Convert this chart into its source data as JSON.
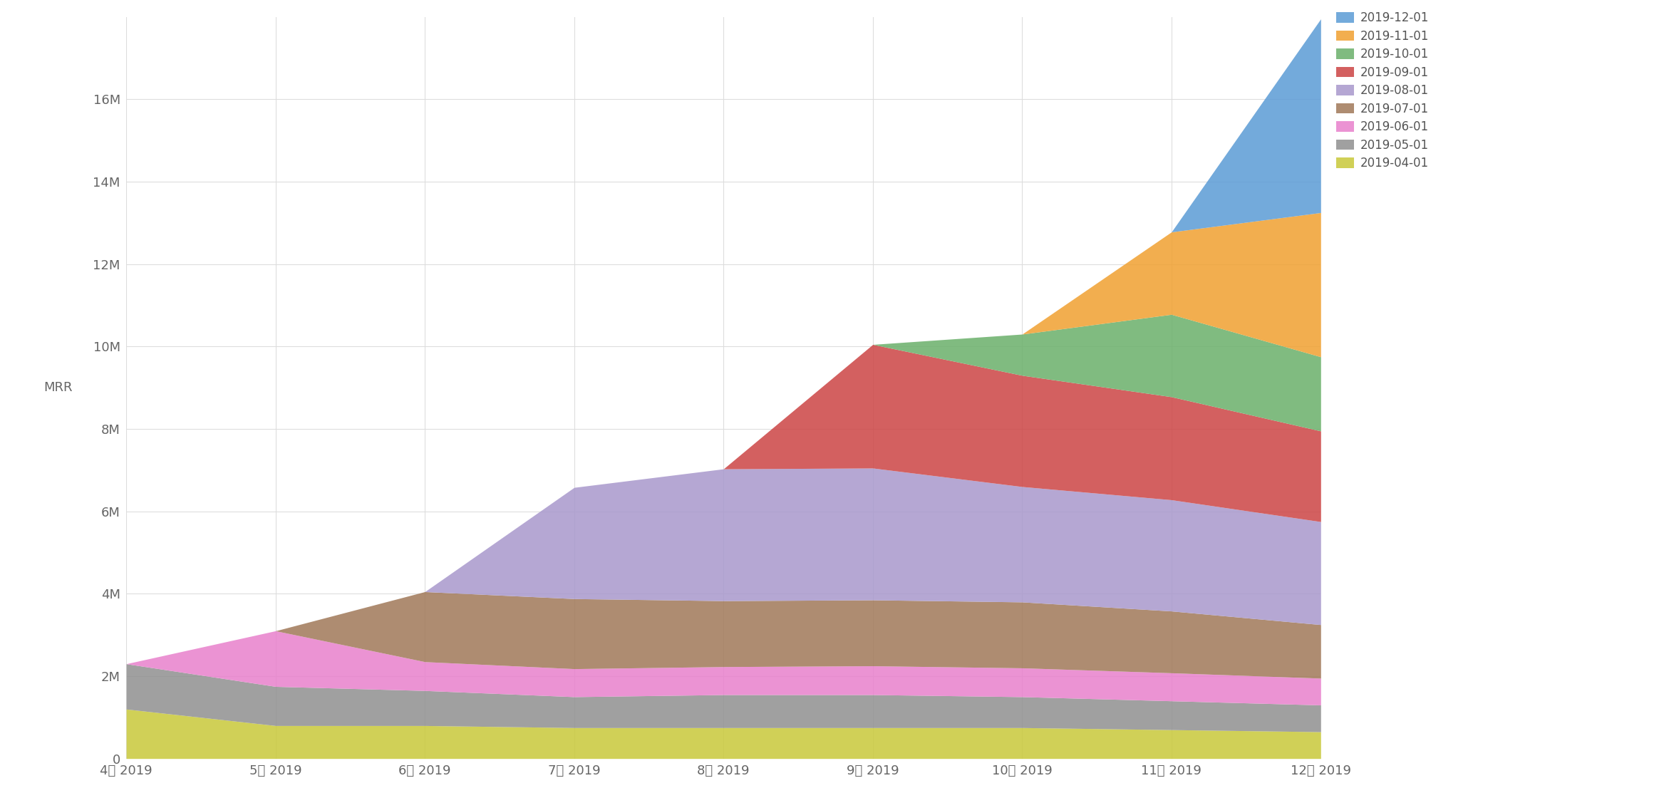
{
  "title": "",
  "ylabel": "MRR",
  "xlabel": "",
  "background_color": "#ffffff",
  "grid_color": "#dddddd",
  "ylim": [
    0,
    18000000
  ],
  "yticks": [
    0,
    2000000,
    4000000,
    6000000,
    8000000,
    10000000,
    12000000,
    14000000,
    16000000
  ],
  "ytick_labels": [
    "0",
    "2M",
    "4M",
    "6M",
    "8M",
    "10M",
    "12M",
    "14M",
    "16M"
  ],
  "x_labels": [
    "4月 2019",
    "5月 2019",
    "6月 2019",
    "7月 2019",
    "8月 2019",
    "9月 2019",
    "10月 2019",
    "11月 2019",
    "12月 2019"
  ],
  "cohorts": [
    {
      "label": "2019-04-01",
      "color": "#c8c83a",
      "values": [
        1200000,
        800000,
        800000,
        750000,
        750000,
        750000,
        750000,
        700000,
        650000
      ]
    },
    {
      "label": "2019-05-01",
      "color": "#909090",
      "values": [
        1100000,
        950000,
        850000,
        750000,
        800000,
        800000,
        750000,
        700000,
        650000
      ]
    },
    {
      "label": "2019-06-01",
      "color": "#e880cc",
      "values": [
        0,
        1350000,
        700000,
        680000,
        680000,
        700000,
        700000,
        680000,
        650000
      ]
    },
    {
      "label": "2019-07-01",
      "color": "#a07858",
      "values": [
        0,
        0,
        1700000,
        1700000,
        1600000,
        1600000,
        1600000,
        1500000,
        1300000
      ]
    },
    {
      "label": "2019-08-01",
      "color": "#a898cc",
      "values": [
        0,
        0,
        0,
        2700000,
        3200000,
        3200000,
        2800000,
        2700000,
        2500000
      ]
    },
    {
      "label": "2019-09-01",
      "color": "#cc4444",
      "values": [
        0,
        0,
        0,
        0,
        0,
        3000000,
        2700000,
        2500000,
        2200000
      ]
    },
    {
      "label": "2019-10-01",
      "color": "#6ab06a",
      "values": [
        0,
        0,
        0,
        0,
        0,
        0,
        1000000,
        2000000,
        1800000
      ]
    },
    {
      "label": "2019-11-01",
      "color": "#f0a030",
      "values": [
        0,
        0,
        0,
        0,
        0,
        0,
        0,
        2000000,
        3500000
      ]
    },
    {
      "label": "2019-12-01",
      "color": "#5b9bd5",
      "values": [
        0,
        0,
        0,
        0,
        0,
        0,
        0,
        0,
        4700000
      ]
    }
  ]
}
